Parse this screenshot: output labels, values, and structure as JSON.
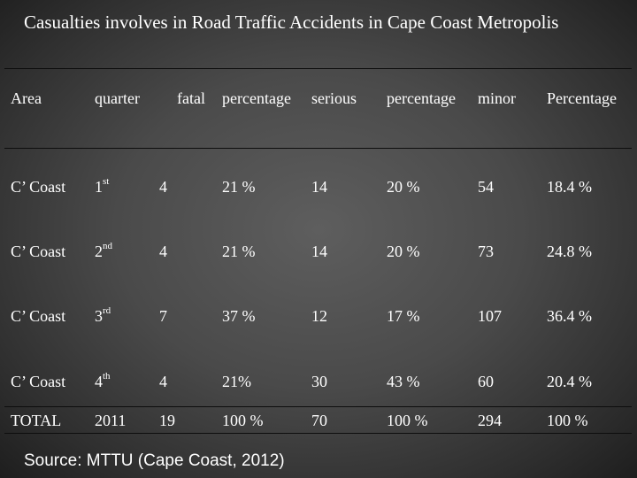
{
  "title": "Casualties involves in Road Traffic Accidents in Cape Coast Metropolis",
  "headers": {
    "area": "Area",
    "quarter": "quarter",
    "fatal": "fatal",
    "fatal_pct": "percentage",
    "serious": "serious",
    "serious_pct": "percentage",
    "minor": "minor",
    "minor_pct": "Percentage"
  },
  "rows": [
    {
      "area": "C’ Coast",
      "quarter_num": "1",
      "quarter_sup": "st",
      "fatal": "4",
      "fatal_pct": "21 %",
      "serious": "14",
      "serious_pct": "20 %",
      "minor": "54",
      "minor_pct": "18.4 %"
    },
    {
      "area": "C’ Coast",
      "quarter_num": "2",
      "quarter_sup": "nd",
      "fatal": "4",
      "fatal_pct": "21 %",
      "serious": "14",
      "serious_pct": "20 %",
      "minor": "73",
      "minor_pct": "24.8 %"
    },
    {
      "area": "C’ Coast",
      "quarter_num": "3",
      "quarter_sup": "rd",
      "fatal": "7",
      "fatal_pct": "37 %",
      "serious": "12",
      "serious_pct": "17 %",
      "minor": "107",
      "minor_pct": "36.4 %"
    },
    {
      "area": "C’ Coast",
      "quarter_num": "4",
      "quarter_sup": "th",
      "fatal": "4",
      "fatal_pct": "21%",
      "serious": "30",
      "serious_pct": "43 %",
      "minor": "60",
      "minor_pct": "20.4 %"
    }
  ],
  "total": {
    "area": "TOTAL",
    "quarter": "2011",
    "fatal": "19",
    "fatal_pct": "100 %",
    "serious": "70",
    "serious_pct": "100 %",
    "minor": "294",
    "minor_pct": "100 %"
  },
  "source": "Source: MTTU (Cape Coast, 2012)"
}
